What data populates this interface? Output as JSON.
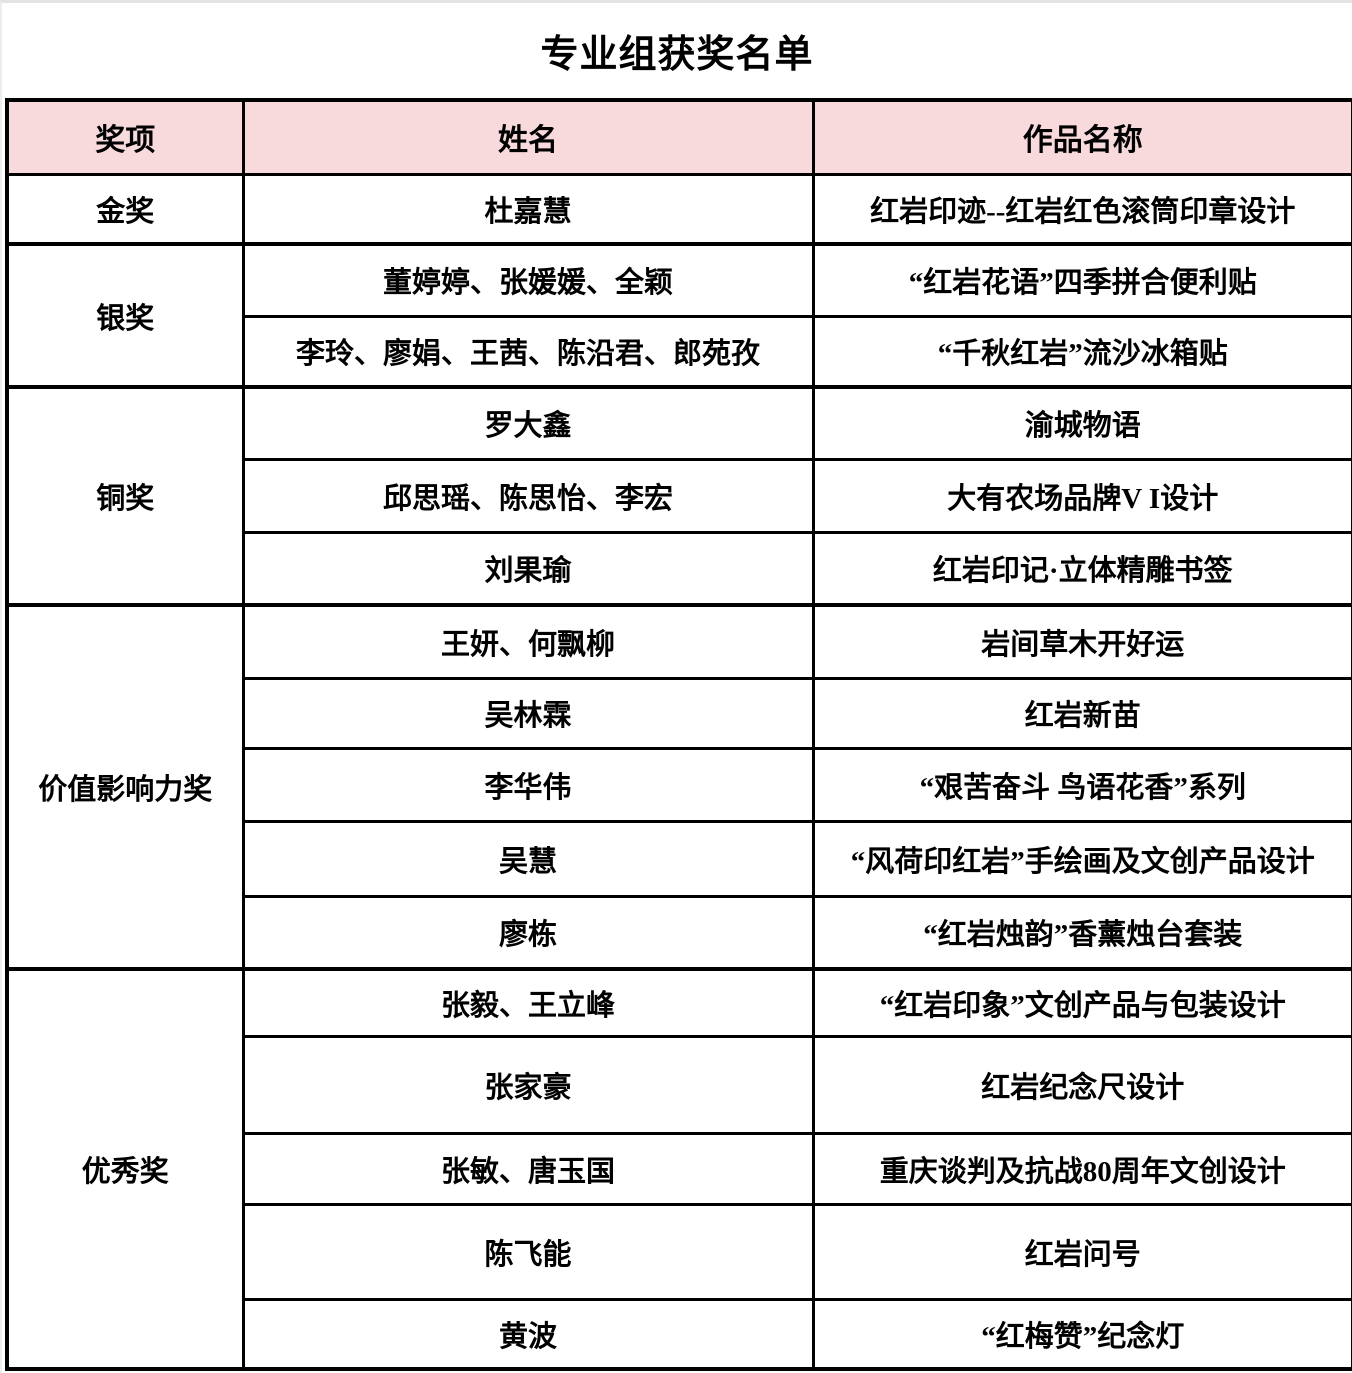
{
  "title": "专业组获奖名单",
  "colors": {
    "header_bg": "#F8D9DC",
    "border": "#000000",
    "text": "#000000"
  },
  "table": {
    "headers": [
      "奖项",
      "姓名",
      "作品名称"
    ],
    "groups": [
      {
        "award": "金奖",
        "entries": [
          {
            "name": "杜嘉慧",
            "work": "红岩印迹--红岩红色滚筒印章设计"
          }
        ]
      },
      {
        "award": "银奖",
        "entries": [
          {
            "name": "董婷婷、张媛媛、全颖",
            "work": "“红岩花语”四季拼合便利贴"
          },
          {
            "name": "李玲、廖娟、王茜、陈沿君、郎苑孜",
            "work": "“千秋红岩”流沙冰箱贴"
          }
        ]
      },
      {
        "award": "铜奖",
        "entries": [
          {
            "name": "罗大鑫",
            "work": "渝城物语"
          },
          {
            "name": "邱思瑶、陈思怡、李宏",
            "work": "大有农场品牌V I设计"
          },
          {
            "name": "刘果瑜",
            "work": "红岩印记·立体精雕书签"
          }
        ]
      },
      {
        "award": "价值影响力奖",
        "entries": [
          {
            "name": "王妍、何飘柳",
            "work": "岩间草木开好运"
          },
          {
            "name": "吴林霖",
            "work": "红岩新苗"
          },
          {
            "name": "李华伟",
            "work": "“艰苦奋斗 鸟语花香”系列"
          },
          {
            "name": "吴慧",
            "work": "“风荷印红岩”手绘画及文创产品设计"
          },
          {
            "name": "廖栋",
            "work": "“红岩烛韵”香薰烛台套装"
          }
        ]
      },
      {
        "award": "优秀奖",
        "entries": [
          {
            "name": "张毅、王立峰",
            "work": "“红岩印象”文创产品与包装设计"
          },
          {
            "name": "张家豪",
            "work": "红岩纪念尺设计"
          },
          {
            "name": "张敏、唐玉国",
            "work": "重庆谈判及抗战80周年文创设计"
          },
          {
            "name": "陈飞能",
            "work": "红岩问号"
          },
          {
            "name": "黄波",
            "work": "“红梅赞”纪念灯"
          }
        ]
      }
    ]
  }
}
